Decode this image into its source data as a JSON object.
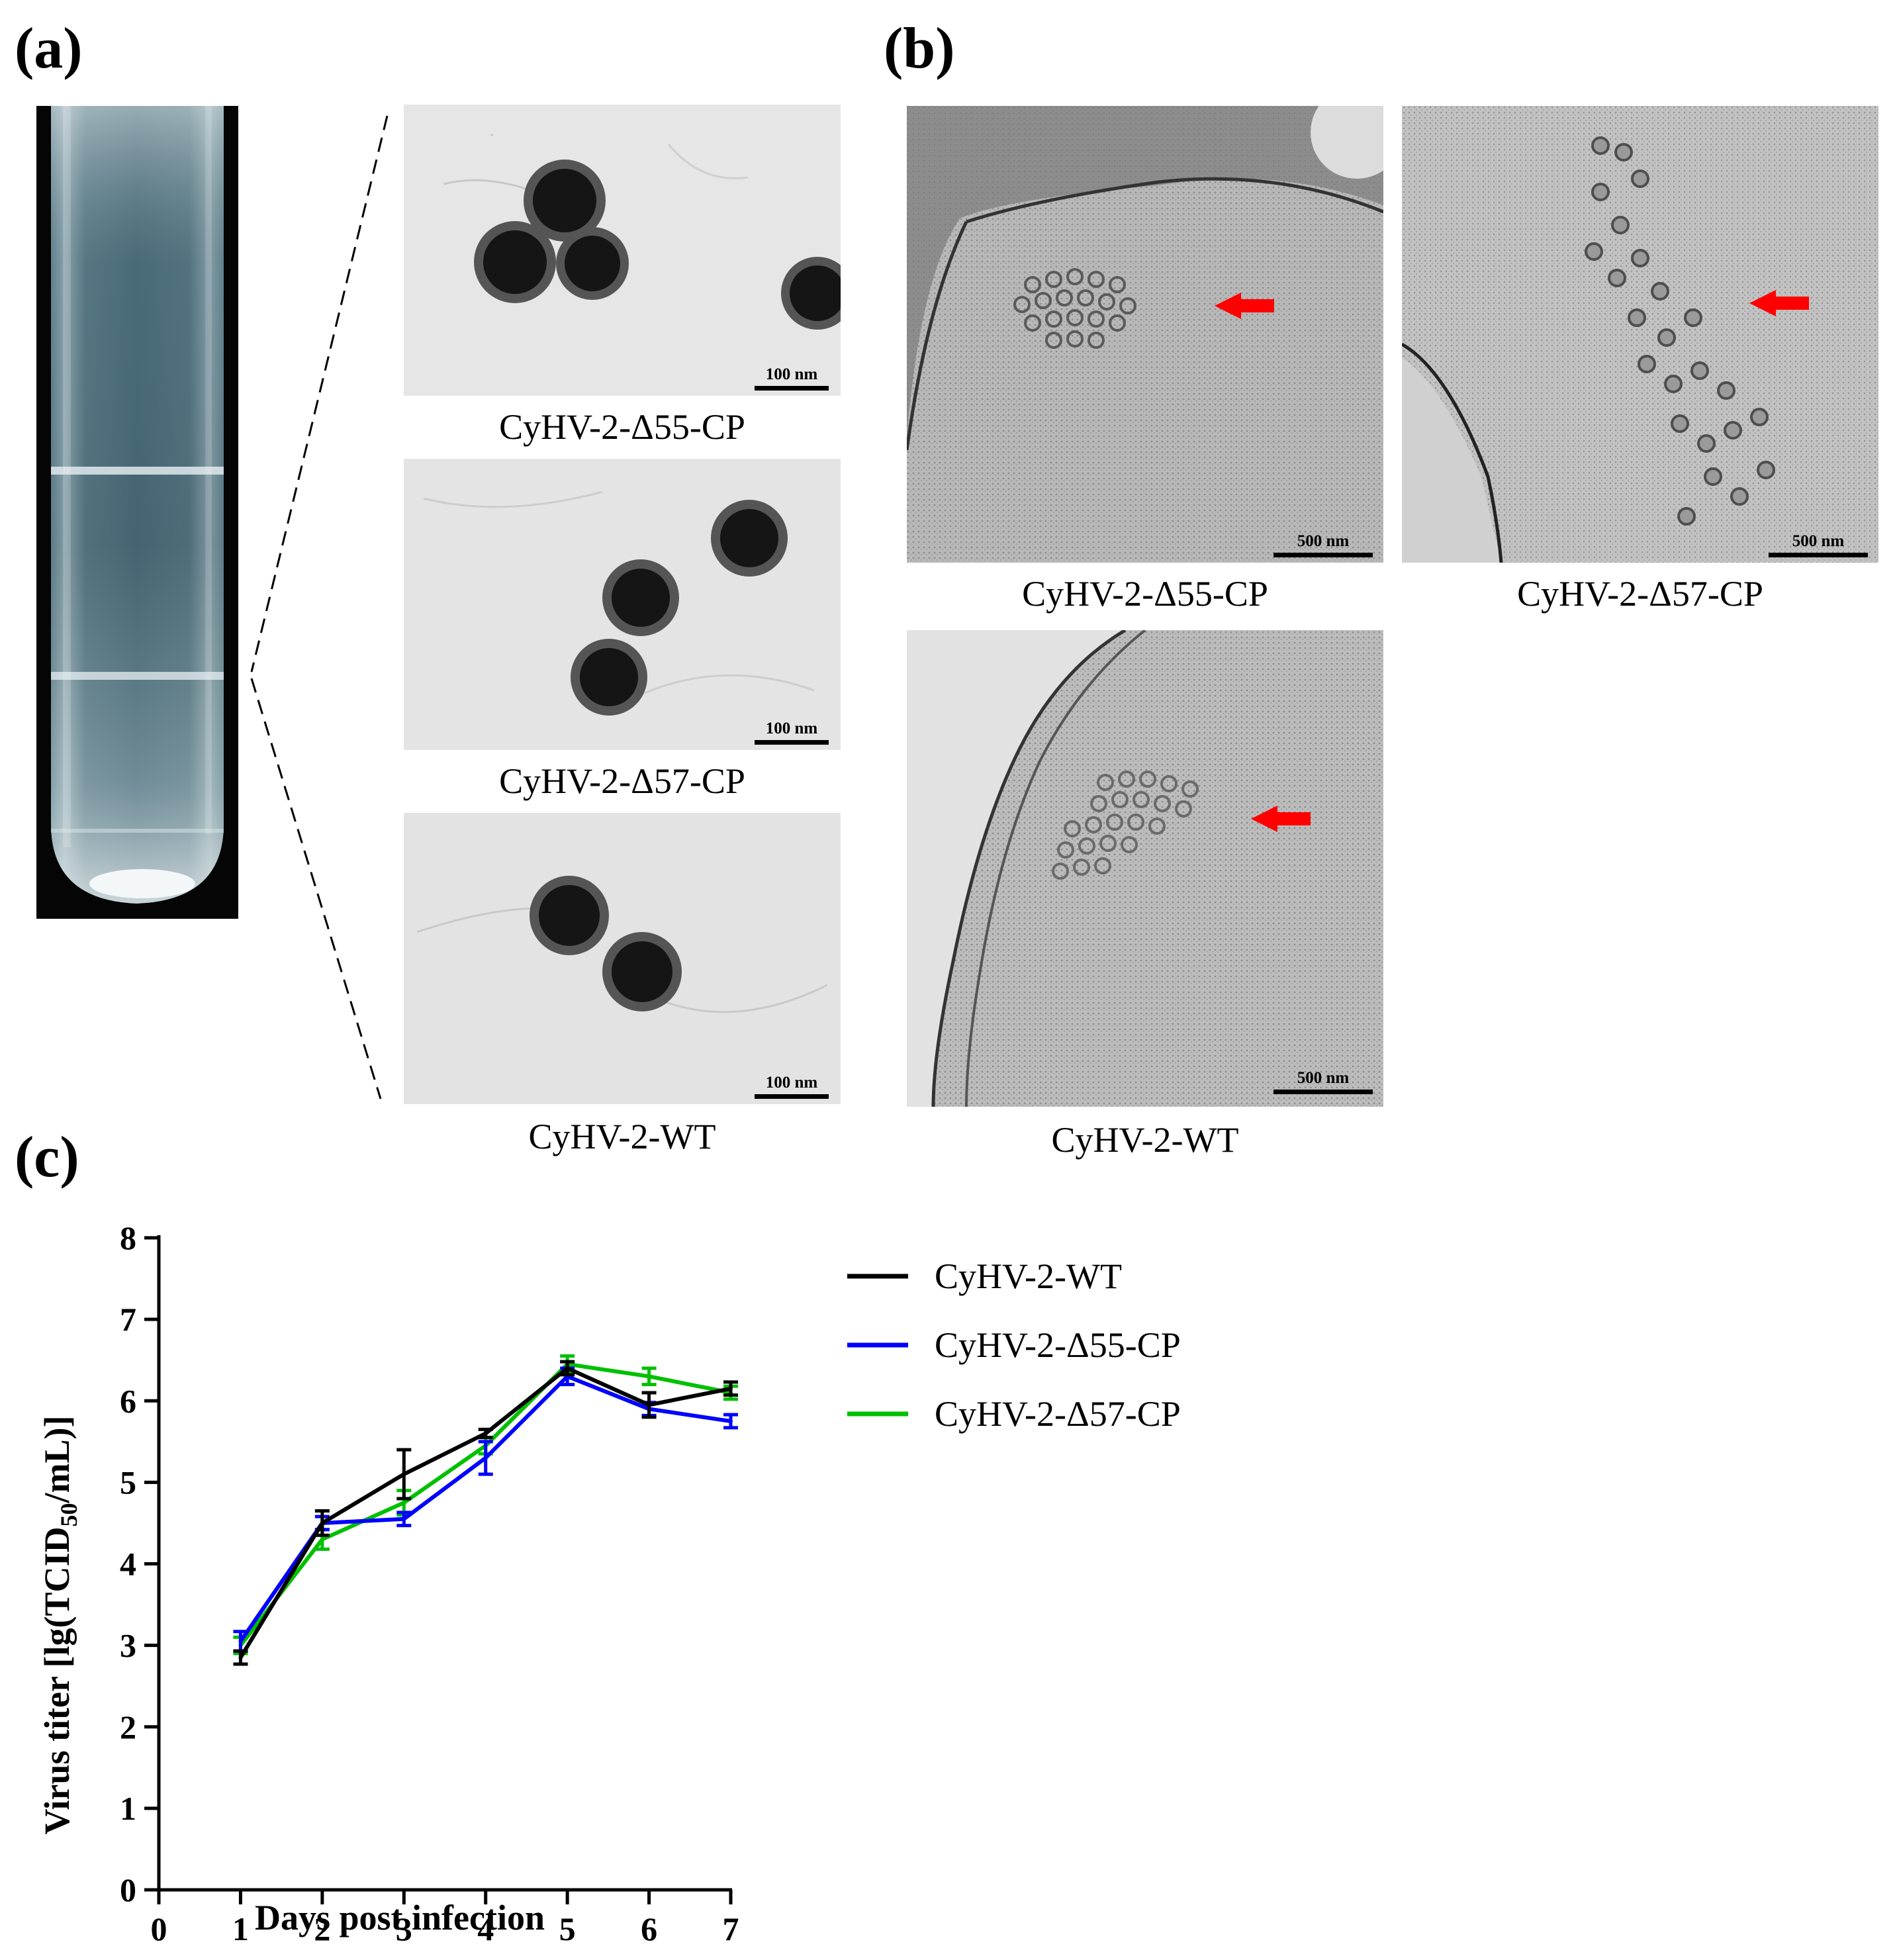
{
  "panels": {
    "a": {
      "letter": "(a)",
      "micrographs": [
        {
          "caption": "CyHV-2-Δ55-CP",
          "scale": "100 nm"
        },
        {
          "caption": "CyHV-2-Δ57-CP",
          "scale": "100 nm"
        },
        {
          "caption": "CyHV-2-WT",
          "scale": "100 nm"
        }
      ]
    },
    "b": {
      "letter": "(b)",
      "micrographs": [
        {
          "caption": "CyHV-2-Δ55-CP",
          "scale": "500 nm"
        },
        {
          "caption": "CyHV-2-Δ57-CP",
          "scale": "500 nm"
        },
        {
          "caption": "CyHV-2-WT",
          "scale": "500 nm"
        }
      ]
    },
    "c": {
      "letter": "(c)"
    }
  },
  "chart_data": {
    "type": "line",
    "title": "",
    "xlabel": "Days post infection",
    "ylabel_main": "Virus titer [lg(TCID",
    "ylabel_sub": "50",
    "ylabel_end": "/mL)]",
    "x": [
      1,
      2,
      3,
      4,
      5,
      6,
      7
    ],
    "xlim": [
      0,
      7
    ],
    "ylim": [
      0,
      8
    ],
    "xticks": [
      0,
      1,
      2,
      3,
      4,
      5,
      6,
      7
    ],
    "yticks": [
      0,
      1,
      2,
      3,
      4,
      5,
      6,
      7,
      8
    ],
    "grid": false,
    "legend": "top-right",
    "series": [
      {
        "name": "CyHV-2-WT",
        "color": "#000000",
        "values": [
          2.85,
          4.5,
          5.1,
          5.6,
          6.4,
          5.95,
          6.15
        ],
        "errors": [
          0.08,
          0.15,
          0.3,
          0.05,
          0.08,
          0.15,
          0.08
        ]
      },
      {
        "name": "CyHV-2-Δ55-CP",
        "color": "#0000ff",
        "values": [
          3.05,
          4.5,
          4.55,
          5.3,
          6.3,
          5.9,
          5.75
        ],
        "errors": [
          0.12,
          0.08,
          0.08,
          0.2,
          0.1,
          0.08,
          0.08
        ]
      },
      {
        "name": "CyHV-2-Δ57-CP",
        "color": "#00c000",
        "values": [
          3.0,
          4.3,
          4.75,
          5.45,
          6.45,
          6.3,
          6.1
        ],
        "errors": [
          0.1,
          0.12,
          0.15,
          0.1,
          0.1,
          0.1,
          0.08
        ]
      }
    ]
  }
}
